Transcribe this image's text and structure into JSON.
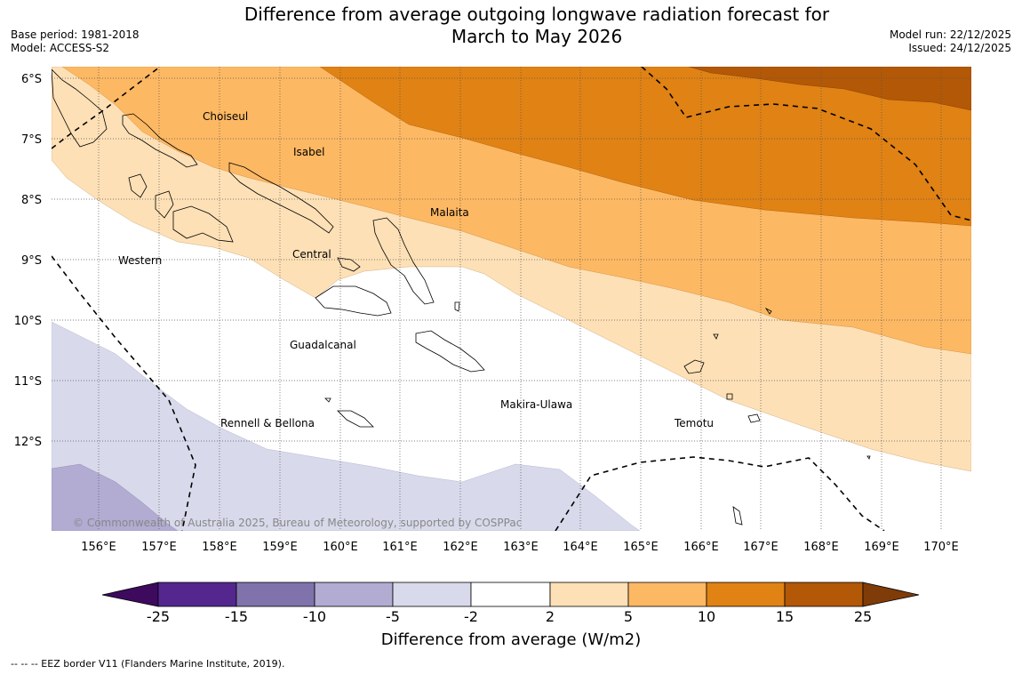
{
  "title_line1": "Difference from average outgoing longwave radiation forecast for",
  "title_line2": "March to May 2026",
  "base_period": "Base period: 1981-2018",
  "model": "Model: ACCESS-S2",
  "model_run": "Model run: 22/12/2025",
  "issued": "Issued: 24/12/2025",
  "copyright": "© Commonwealth of Australia 2025, Bureau of Meteorology, supported by COSPPac",
  "footnote": "-- -- -- EEZ border V11 (Flanders Marine Institute, 2019).",
  "colorbar_title": "Difference from average (W/m2)",
  "colorbar_ticks": [
    "-25",
    "-15",
    "-10",
    "-5",
    "-2",
    "2",
    "5",
    "10",
    "15",
    "25"
  ],
  "colorbar_colors": [
    "#3d0a5e",
    "#54278f",
    "#8073ac",
    "#b2abd2",
    "#d8daeb",
    "#ffffff",
    "#fee0b6",
    "#fdb863",
    "#e08214",
    "#b35806",
    "#7f3b08"
  ],
  "lon_labels": [
    "156°E",
    "157°E",
    "158°E",
    "159°E",
    "160°E",
    "161°E",
    "162°E",
    "163°E",
    "164°E",
    "165°E",
    "166°E",
    "167°E",
    "168°E",
    "169°E",
    "170°E"
  ],
  "lat_labels": [
    "6°S",
    "7°S",
    "8°S",
    "9°S",
    "10°S",
    "11°S",
    "12°S"
  ],
  "places": [
    "Choiseul",
    "Isabel",
    "Malaita",
    "Western",
    "Central",
    "Guadalcanal",
    "Makira-Ulawa",
    "Rennell & Bellona",
    "Temotu"
  ]
}
